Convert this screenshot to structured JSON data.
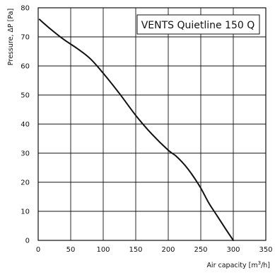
{
  "chart_data": {
    "type": "line",
    "title": "VENTS Quietline 150 Q",
    "xlabel": "Air capacity [m",
    "xlabel_sup": "3",
    "xlabel_tail": "/h]",
    "ylabel": "Pressure, ΔP [Pa]",
    "xlim": [
      0,
      350
    ],
    "ylim": [
      0,
      80
    ],
    "x_ticks": [
      0,
      50,
      100,
      150,
      200,
      250,
      300,
      350
    ],
    "y_ticks": [
      0,
      10,
      20,
      30,
      40,
      50,
      60,
      70,
      80
    ],
    "grid": true,
    "series": [
      {
        "points": [
          [
            2,
            76
          ],
          [
            20,
            72.5
          ],
          [
            40,
            69
          ],
          [
            60,
            66
          ],
          [
            80,
            62.5
          ],
          [
            100,
            57.5
          ],
          [
            125,
            50.5
          ],
          [
            150,
            43
          ],
          [
            175,
            36.5
          ],
          [
            200,
            31
          ],
          [
            212,
            29
          ],
          [
            225,
            26
          ],
          [
            237,
            22.5
          ],
          [
            250,
            18
          ],
          [
            262,
            13
          ],
          [
            275,
            8.5
          ],
          [
            288,
            4
          ],
          [
            300,
            0
          ]
        ]
      }
    ],
    "line_color": "#111111"
  }
}
